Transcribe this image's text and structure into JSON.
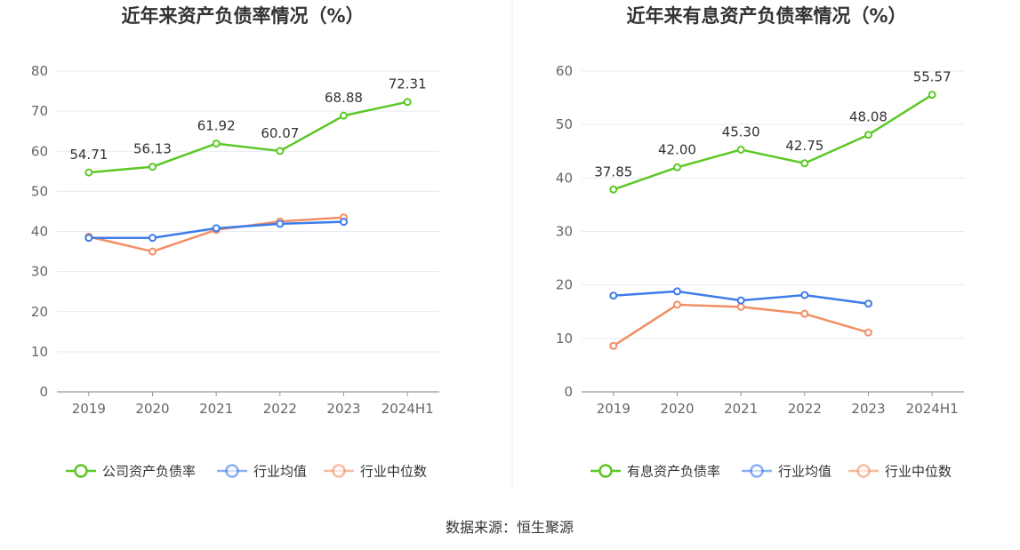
{
  "source": "数据来源：恒生聚源",
  "colors": {
    "company": "#5bc825",
    "industry_avg": "#3d7cea",
    "industry_median": "#f28e65",
    "grid": "#e6e9f2",
    "axis": "#999999",
    "divider": "#eeeeee"
  },
  "chart_data": [
    {
      "type": "line",
      "title": "近年来资产负债率情况（%）",
      "categories": [
        "2019",
        "2020",
        "2021",
        "2022",
        "2023",
        "2024H1"
      ],
      "ylim": [
        0,
        80
      ],
      "yticks": [
        0,
        10,
        20,
        30,
        40,
        50,
        60,
        70,
        80
      ],
      "grid": true,
      "legend_position": "bottom",
      "series": [
        {
          "name": "公司资产负债率",
          "color_key": "company",
          "labels": true,
          "values": [
            54.71,
            56.13,
            61.92,
            60.07,
            68.88,
            72.31
          ],
          "value_labels": [
            "54.71",
            "56.13",
            "61.92",
            "60.07",
            "68.88",
            "72.31"
          ]
        },
        {
          "name": "行业均值",
          "color_key": "industry_avg",
          "labels": false,
          "values": [
            38.4,
            38.4,
            40.8,
            41.9,
            42.4,
            null
          ]
        },
        {
          "name": "行业中位数",
          "color_key": "industry_median",
          "labels": false,
          "values": [
            38.7,
            35.0,
            40.4,
            42.5,
            43.5,
            null
          ]
        }
      ]
    },
    {
      "type": "line",
      "title": "近年来有息资产负债率情况（%）",
      "categories": [
        "2019",
        "2020",
        "2021",
        "2022",
        "2023",
        "2024H1"
      ],
      "ylim": [
        0,
        60
      ],
      "yticks": [
        0,
        10,
        20,
        30,
        40,
        50,
        60
      ],
      "grid": true,
      "legend_position": "bottom",
      "series": [
        {
          "name": "有息资产负债率",
          "color_key": "company",
          "labels": true,
          "values": [
            37.85,
            42.0,
            45.3,
            42.75,
            48.08,
            55.57
          ],
          "value_labels": [
            "37.85",
            "42.00",
            "45.30",
            "42.75",
            "48.08",
            "55.57"
          ]
        },
        {
          "name": "行业均值",
          "color_key": "industry_avg",
          "labels": false,
          "values": [
            18.0,
            18.8,
            17.1,
            18.1,
            16.5,
            null
          ]
        },
        {
          "name": "行业中位数",
          "color_key": "industry_median",
          "labels": false,
          "values": [
            8.6,
            16.3,
            15.9,
            14.6,
            11.1,
            null
          ]
        }
      ]
    }
  ]
}
